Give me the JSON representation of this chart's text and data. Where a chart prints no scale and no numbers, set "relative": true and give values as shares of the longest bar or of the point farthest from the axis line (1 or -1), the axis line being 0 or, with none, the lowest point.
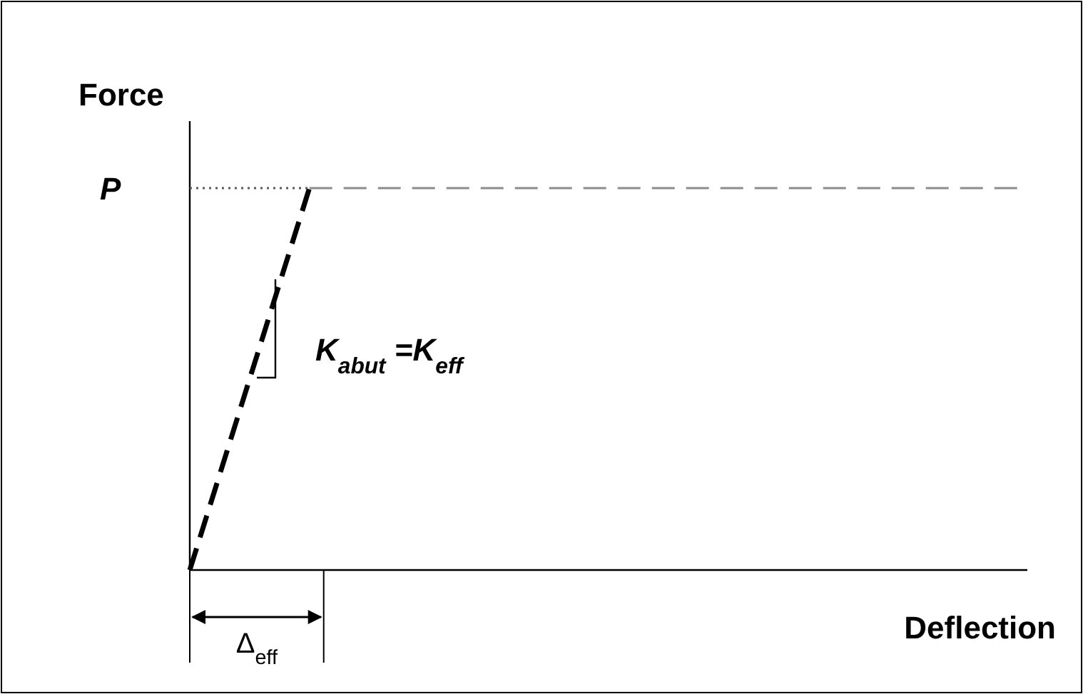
{
  "chart_data": {
    "type": "line",
    "relative": true,
    "xlabel": "Deflection",
    "ylabel": "Force",
    "marker": "none",
    "categories": [
      null,
      null,
      null,
      null,
      null,
      null,
      null,
      null
    ],
    "series": [
      {
        "color": "#000000",
        "values": [
          0,
          1,
          null,
          null,
          null,
          null,
          null,
          null
        ],
        "line_style": "dashed"
      },
      {
        "color": "#8c8c8c",
        "values": [
          null,
          1,
          1,
          1,
          1,
          1,
          1,
          1
        ],
        "line_style": "dashed"
      },
      {
        "color": "#5a5a5a",
        "values": [
          1,
          1,
          null,
          null,
          null,
          null,
          null,
          null
        ],
        "line_style": "dotted"
      }
    ],
    "annotations": [
      "P",
      "K$_{abut}$ =K$_{eff}$",
      "Δ$_{eff}$"
    ]
  }
}
